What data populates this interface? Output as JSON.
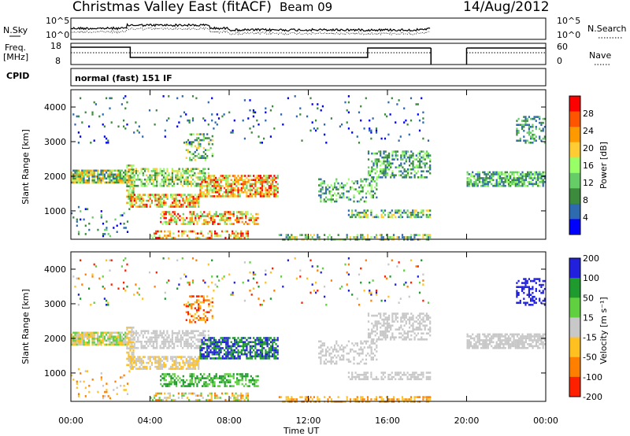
{
  "header": {
    "station": "Christmas Valley East (fitACF)",
    "beam": "Beam 09",
    "date": "14/Aug/2012"
  },
  "top_panels": {
    "nsky_label": "N.Sky",
    "nsearch_label": "N.Search",
    "noise_ticks": [
      "10^5",
      "10^0"
    ],
    "freq_label": "Freq.",
    "freq_unit": "[MHz]",
    "freq_ticks": [
      "18",
      "8"
    ],
    "nave_label": "Nave",
    "nave_ticks": [
      "60",
      "0"
    ],
    "cpid_label": "CPID",
    "cpid_text": "normal (fast) 151 IF"
  },
  "colors": {
    "power_scale": [
      "#0000ff",
      "#2e6ab0",
      "#3c8a3c",
      "#66cc66",
      "#99ff66",
      "#ffcc33",
      "#ff9900",
      "#ff5500",
      "#ff0000"
    ],
    "velocity_scale": [
      "#2020dd",
      "#1e9a2e",
      "#60d040",
      "#c8c8c8",
      "#ffc020",
      "#ff8000",
      "#ff2000"
    ]
  },
  "chart_data": [
    {
      "type": "heatmap",
      "title": "Power",
      "ylabel": "Slant Range [km]",
      "xlabel": "",
      "x_ticks": [
        "00:00",
        "04:00",
        "08:00",
        "12:00",
        "16:00",
        "20:00",
        "00:00"
      ],
      "y_ticks": [
        "1000",
        "2000",
        "3000",
        "4000"
      ],
      "ylim": [
        180,
        4500
      ],
      "colorbar_label": "Power [dB]",
      "colorbar_ticks": [
        "4",
        "8",
        "12",
        "16",
        "20",
        "24",
        "28"
      ],
      "data_gap_hours": [
        18.2,
        20.0
      ]
    },
    {
      "type": "heatmap",
      "title": "Velocity",
      "ylabel": "Slant Range [km]",
      "xlabel": "Time UT",
      "x_ticks": [
        "00:00",
        "04:00",
        "08:00",
        "12:00",
        "16:00",
        "20:00",
        "00:00"
      ],
      "y_ticks": [
        "1000",
        "2000",
        "3000",
        "4000"
      ],
      "ylim": [
        180,
        4500
      ],
      "colorbar_label": "Velocity [m s⁻¹]",
      "colorbar_ticks": [
        "200",
        "100",
        "50",
        "15",
        "-15",
        "-50",
        "-100",
        "-200"
      ],
      "data_gap_hours": [
        18.2,
        20.0
      ]
    }
  ]
}
